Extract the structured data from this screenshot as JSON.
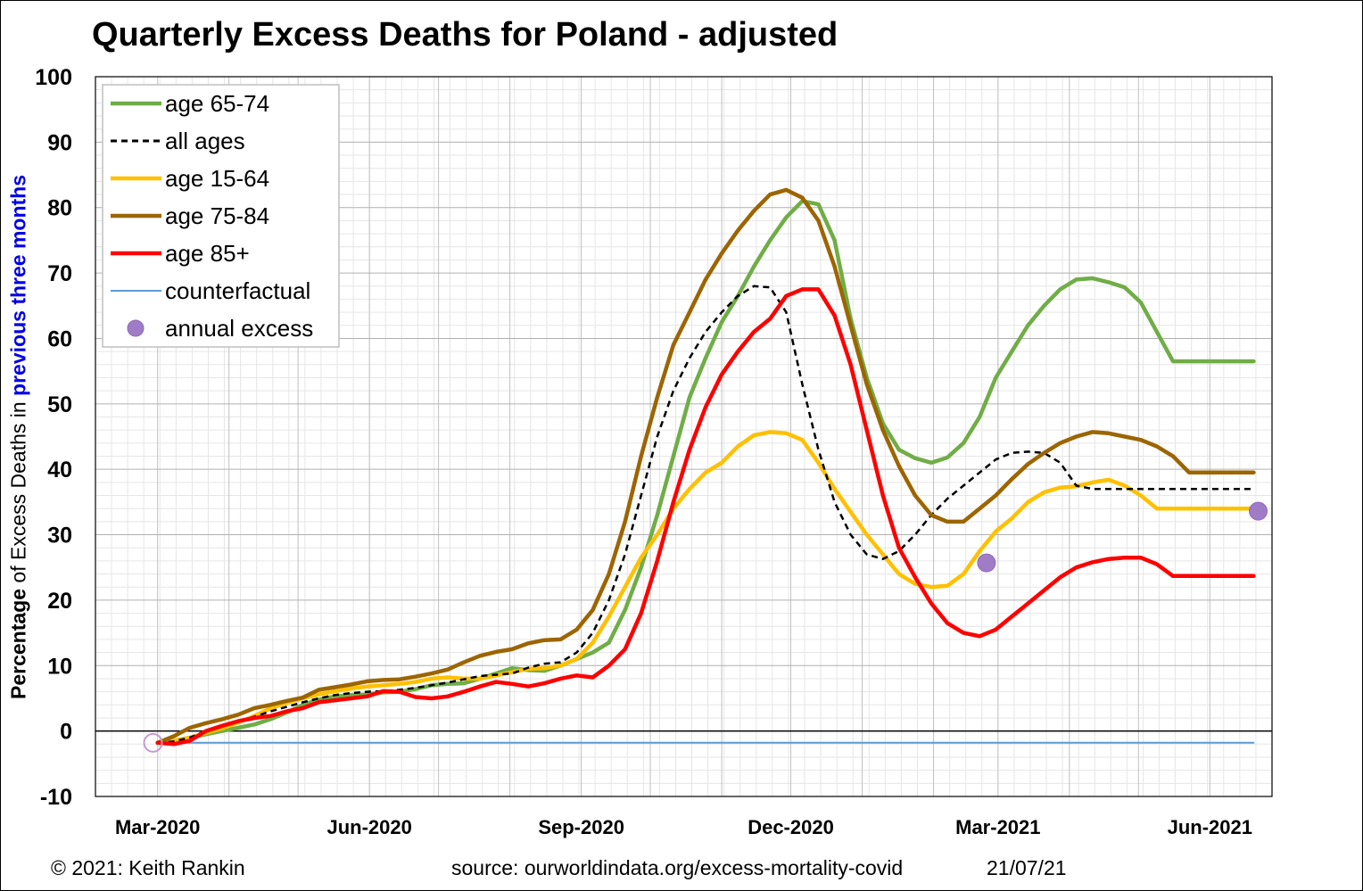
{
  "title": "Quarterly Excess Deaths for Poland - adjusted",
  "y_axis_label": {
    "part1": "Percentage",
    "part2": " of Excess Deaths in ",
    "part3": "previous three months"
  },
  "footer": {
    "copyright": "© 2021: Keith Rankin",
    "source": "source: ourworldindata.org/excess-mortality-covid",
    "date": "21/07/21"
  },
  "colors": {
    "age_65_74": "#70ad47",
    "all_ages": "#000000",
    "age_15_64": "#ffc000",
    "age_75_84": "#9c6500",
    "age_85_plus": "#ff0000",
    "counterfactual": "#5b9bd5",
    "annual_excess": "#a07cc8"
  },
  "chart_data": {
    "type": "line",
    "title": "Quarterly Excess Deaths for Poland - adjusted",
    "ylabel": "Percentage of Excess Deaths in previous three months",
    "xlabel": "",
    "ylim": [
      -10,
      100
    ],
    "yticks": [
      100,
      90,
      80,
      70,
      60,
      50,
      40,
      30,
      20,
      10,
      0,
      -10
    ],
    "x_tick_labels": [
      {
        "date": "2020-03-01",
        "label": "Mar-2020"
      },
      {
        "date": "2020-06-01",
        "label": "Jun-2020"
      },
      {
        "date": "2020-09-01",
        "label": "Sep-2020"
      },
      {
        "date": "2020-12-01",
        "label": "Dec-2020"
      },
      {
        "date": "2021-03-01",
        "label": "Mar-2021"
      },
      {
        "date": "2021-06-01",
        "label": "Jun-2021"
      }
    ],
    "x_range": [
      "2020-02-03",
      "2021-06-28"
    ],
    "grid": true,
    "legend_position": "top-left",
    "x": [
      "2020-03-01",
      "2020-03-08",
      "2020-03-15",
      "2020-03-22",
      "2020-03-29",
      "2020-04-05",
      "2020-04-12",
      "2020-04-19",
      "2020-04-26",
      "2020-05-03",
      "2020-05-10",
      "2020-05-17",
      "2020-05-24",
      "2020-05-31",
      "2020-06-07",
      "2020-06-14",
      "2020-06-21",
      "2020-06-28",
      "2020-07-05",
      "2020-07-12",
      "2020-07-19",
      "2020-07-26",
      "2020-08-02",
      "2020-08-09",
      "2020-08-16",
      "2020-08-23",
      "2020-08-30",
      "2020-09-06",
      "2020-09-13",
      "2020-09-20",
      "2020-09-27",
      "2020-10-04",
      "2020-10-11",
      "2020-10-18",
      "2020-10-25",
      "2020-11-01",
      "2020-11-08",
      "2020-11-15",
      "2020-11-22",
      "2020-11-29",
      "2020-12-06",
      "2020-12-13",
      "2020-12-20",
      "2020-12-27",
      "2021-01-03",
      "2021-01-10",
      "2021-01-17",
      "2021-01-24",
      "2021-01-31",
      "2021-02-07",
      "2021-02-14",
      "2021-02-21",
      "2021-02-28",
      "2021-03-07",
      "2021-03-14",
      "2021-03-21",
      "2021-03-28",
      "2021-04-04",
      "2021-04-11",
      "2021-04-18",
      "2021-04-25",
      "2021-05-02",
      "2021-05-09",
      "2021-05-16",
      "2021-05-23",
      "2021-05-30",
      "2021-06-06",
      "2021-06-13",
      "2021-06-20"
    ],
    "series": [
      {
        "name": "age 65-74",
        "key": "age_65_74",
        "style": "solid",
        "values": [
          -1.8,
          -1.5,
          -1.0,
          -0.5,
          0.0,
          0.5,
          1.0,
          1.8,
          2.8,
          4.0,
          4.8,
          5.3,
          5.5,
          5.6,
          5.9,
          6.0,
          6.4,
          7.0,
          7.2,
          7.3,
          8.0,
          8.8,
          9.6,
          9.3,
          9.2,
          10.0,
          11.0,
          12.0,
          13.5,
          18.5,
          25.0,
          33.0,
          42.0,
          51.0,
          57.0,
          62.5,
          66.5,
          71.0,
          75.0,
          78.5,
          81.0,
          80.5,
          75.0,
          63.0,
          54.0,
          47.0,
          43.0,
          41.7,
          41.0,
          41.8,
          44.0,
          48.0,
          54.0,
          58.0,
          62.0,
          65.0,
          67.5,
          69.0,
          69.2,
          68.6,
          67.8,
          65.5,
          61.0,
          56.5,
          56.5,
          56.5,
          56.5,
          56.5,
          56.5
        ]
      },
      {
        "name": "all ages",
        "key": "all_ages",
        "style": "dashed",
        "values": [
          -1.8,
          -1.6,
          -1.0,
          0.0,
          0.8,
          1.5,
          2.2,
          3.0,
          3.7,
          4.4,
          5.0,
          5.5,
          5.8,
          6.0,
          6.1,
          6.3,
          6.6,
          7.0,
          7.4,
          7.9,
          8.4,
          8.6,
          8.8,
          9.7,
          10.3,
          10.5,
          12.0,
          15.0,
          20.0,
          27.0,
          36.0,
          45.0,
          52.0,
          57.0,
          61.0,
          64.0,
          66.5,
          68.0,
          67.8,
          64.0,
          53.0,
          43.0,
          35.0,
          30.0,
          27.0,
          26.3,
          27.5,
          30.0,
          33.0,
          35.5,
          37.5,
          39.5,
          41.5,
          42.5,
          42.7,
          42.5,
          41.0,
          37.5,
          37.0,
          37.0,
          37.0,
          37.0,
          37.0,
          37.0,
          37.0,
          37.0,
          37.0,
          37.0,
          37.0
        ]
      },
      {
        "name": "age 15-64",
        "key": "age_15_64",
        "style": "solid",
        "values": [
          -1.8,
          -1.5,
          -1.0,
          -0.3,
          0.4,
          1.3,
          2.3,
          3.5,
          4.3,
          5.0,
          5.6,
          6.1,
          6.5,
          6.8,
          7.0,
          7.2,
          7.5,
          8.0,
          8.2,
          8.0,
          8.0,
          8.5,
          9.0,
          9.5,
          9.6,
          10.0,
          11.0,
          13.5,
          17.5,
          22.0,
          26.5,
          30.0,
          34.0,
          37.0,
          39.5,
          41.0,
          43.5,
          45.2,
          45.7,
          45.5,
          44.5,
          41.0,
          37.0,
          33.5,
          30.0,
          27.0,
          24.0,
          22.5,
          22.0,
          22.2,
          24.0,
          27.5,
          30.5,
          32.5,
          35.0,
          36.5,
          37.2,
          37.4,
          38.0,
          38.4,
          37.5,
          36.0,
          34.0,
          34.0,
          34.0,
          34.0,
          34.0,
          34.0,
          34.0
        ]
      },
      {
        "name": "age 75-84",
        "key": "age_75_84",
        "style": "solid",
        "values": [
          -1.8,
          -0.8,
          0.5,
          1.2,
          1.8,
          2.5,
          3.5,
          4.0,
          4.6,
          5.1,
          6.3,
          6.7,
          7.1,
          7.6,
          7.8,
          7.9,
          8.3,
          8.8,
          9.4,
          10.5,
          11.5,
          12.1,
          12.5,
          13.4,
          13.9,
          14.0,
          15.5,
          18.5,
          24.0,
          32.0,
          42.0,
          51.0,
          59.0,
          64.0,
          69.0,
          73.0,
          76.5,
          79.5,
          82.0,
          82.7,
          81.5,
          78.0,
          71.0,
          62.0,
          53.0,
          46.0,
          40.5,
          36.0,
          33.0,
          32.0,
          32.0,
          34.0,
          36.0,
          38.5,
          40.8,
          42.5,
          44.0,
          45.0,
          45.7,
          45.5,
          45.0,
          44.5,
          43.5,
          42.0,
          39.5,
          39.5,
          39.5,
          39.5,
          39.5
        ]
      },
      {
        "name": "age 85+",
        "key": "age_85_plus",
        "style": "solid",
        "values": [
          -1.8,
          -2.0,
          -1.5,
          0.0,
          0.8,
          1.5,
          2.0,
          2.3,
          3.0,
          3.5,
          4.4,
          4.7,
          5.0,
          5.3,
          6.1,
          6.0,
          5.2,
          5.0,
          5.3,
          6.0,
          6.8,
          7.5,
          7.2,
          6.8,
          7.3,
          8.0,
          8.5,
          8.2,
          10.0,
          12.5,
          18.0,
          26.0,
          35.0,
          43.0,
          49.5,
          54.5,
          58.0,
          61.0,
          63.0,
          66.5,
          67.5,
          67.5,
          63.5,
          56.0,
          46.0,
          36.0,
          28.0,
          23.5,
          19.5,
          16.5,
          15.0,
          14.5,
          15.5,
          17.5,
          19.5,
          21.5,
          23.5,
          25.0,
          25.8,
          26.3,
          26.5,
          26.5,
          25.5,
          23.7,
          23.7,
          23.7,
          23.7,
          23.7,
          23.7
        ]
      },
      {
        "name": "counterfactual",
        "key": "counterfactual",
        "style": "solid",
        "values": [
          -1.8,
          -1.8,
          -1.8,
          -1.8,
          -1.8,
          -1.8,
          -1.8,
          -1.8,
          -1.8,
          -1.8,
          -1.8,
          -1.8,
          -1.8,
          -1.8,
          -1.8,
          -1.8,
          -1.8,
          -1.8,
          -1.8,
          -1.8,
          -1.8,
          -1.8,
          -1.8,
          -1.8,
          -1.8,
          -1.8,
          -1.8,
          -1.8,
          -1.8,
          -1.8,
          -1.8,
          -1.8,
          -1.8,
          -1.8,
          -1.8,
          -1.8,
          -1.8,
          -1.8,
          -1.8,
          -1.8,
          -1.8,
          -1.8,
          -1.8,
          -1.8,
          -1.8,
          -1.8,
          -1.8,
          -1.8,
          -1.8,
          -1.8,
          -1.8,
          -1.8,
          -1.8,
          -1.8,
          -1.8,
          -1.8,
          -1.8,
          -1.8,
          -1.8,
          -1.8,
          -1.8,
          -1.8,
          -1.8,
          -1.8,
          -1.8,
          -1.8,
          -1.8,
          -1.8,
          -1.8
        ]
      }
    ],
    "annual_excess": {
      "name": "annual excess",
      "points": [
        {
          "x": "2020-02-28",
          "y": -1.8,
          "hollow": true
        },
        {
          "x": "2021-02-24",
          "y": 25.7,
          "hollow": false
        },
        {
          "x": "2021-06-22",
          "y": 33.6,
          "hollow": false
        }
      ]
    },
    "legend": [
      {
        "label": "age 65-74",
        "key": "age_65_74",
        "style": "solid"
      },
      {
        "label": "all ages",
        "key": "all_ages",
        "style": "dashed"
      },
      {
        "label": "age 15-64",
        "key": "age_15_64",
        "style": "solid"
      },
      {
        "label": "age 75-84",
        "key": "age_75_84",
        "style": "solid"
      },
      {
        "label": "age 85+",
        "key": "age_85_plus",
        "style": "solid"
      },
      {
        "label": "counterfactual",
        "key": "counterfactual",
        "style": "thin"
      },
      {
        "label": "annual excess",
        "key": "annual_excess",
        "style": "marker"
      }
    ]
  }
}
